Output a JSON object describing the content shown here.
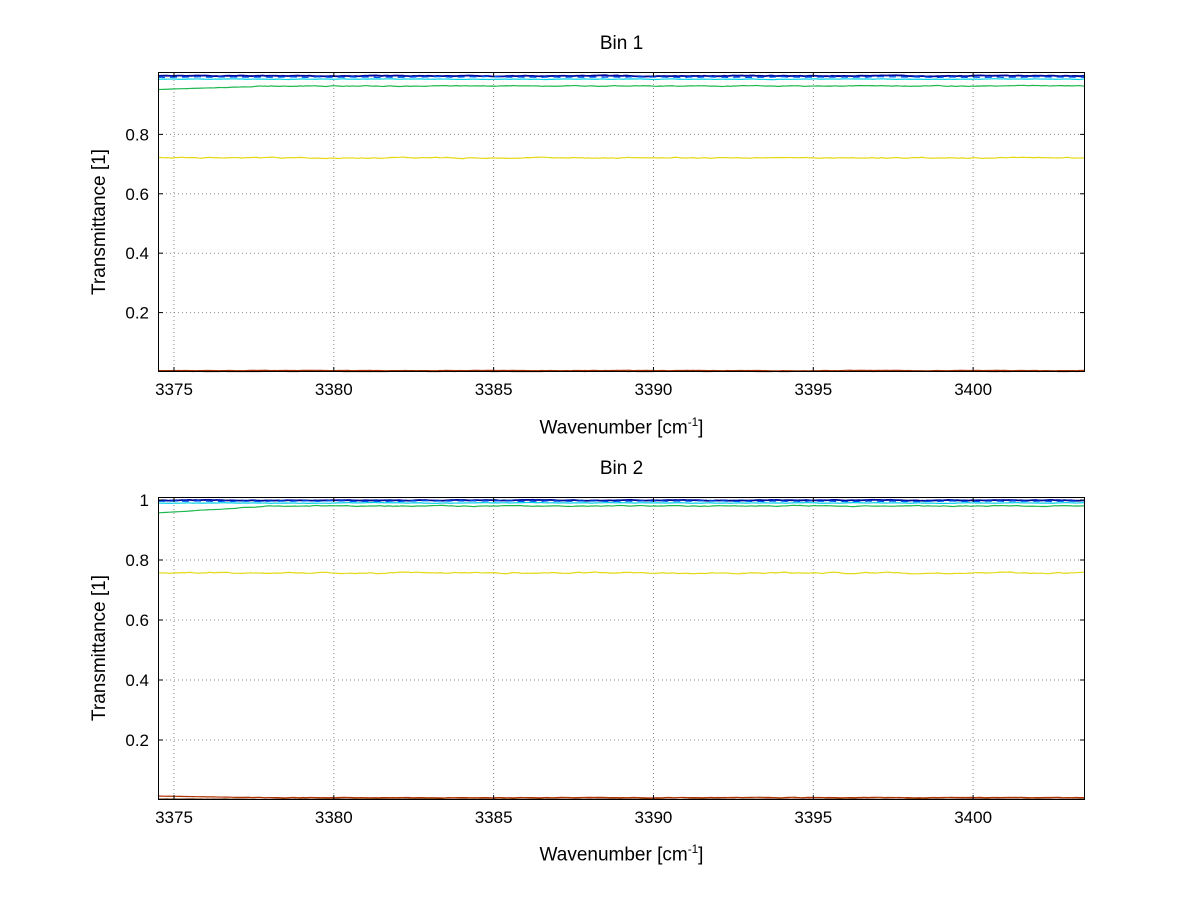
{
  "figure": {
    "background": "#ffffff",
    "grid_color": "#8a8a8a",
    "axis_color": "#000000",
    "tick_font_px": 17
  },
  "chart_data": [
    {
      "type": "line",
      "title": "Bin 1",
      "xlabel": "Wavenumber [cm^-1]",
      "xlabel_parts": {
        "prefix": "Wavenumber [cm",
        "sup": "-1",
        "suffix": "]"
      },
      "ylabel": "Transmittance [1]",
      "xlim": [
        3374.5,
        3403.5
      ],
      "ylim": [
        0,
        1.01
      ],
      "xticks": [
        3375,
        3380,
        3385,
        3390,
        3395,
        3400
      ],
      "xtick_labels": [
        "3375",
        "3380",
        "3385",
        "3390",
        "3395",
        "3400"
      ],
      "yticks": [
        0.2,
        0.4,
        0.6,
        0.8
      ],
      "ytick_labels": [
        "0.2",
        "0.4",
        "0.6",
        "0.8"
      ],
      "grid": true,
      "grid_style": "dotted",
      "legend": "none",
      "series": [
        {
          "name": "line-dark-blue",
          "color": "#000a99",
          "value": 0.997,
          "noise": 0.0035,
          "width": 1.8
        },
        {
          "name": "line-blue",
          "color": "#0055ee",
          "value": 0.993,
          "noise": 0.003,
          "width": 1.2,
          "dash": "7 5"
        },
        {
          "name": "line-cyan",
          "color": "#00cfe8",
          "value": 0.986,
          "noise": 0.0025,
          "width": 1.2
        },
        {
          "name": "line-green",
          "color": "#1fb84f",
          "value": 0.963,
          "noise": 0.004,
          "width": 1.2,
          "start_value": 0.951
        },
        {
          "name": "line-yellow",
          "color": "#e3d915",
          "value": 0.721,
          "noise": 0.005,
          "width": 1.2
        },
        {
          "name": "line-red",
          "color": "#b03000",
          "value": 0.005,
          "noise": 0.0018,
          "width": 1.2
        },
        {
          "name": "line-dark-red",
          "color": "#5e2600",
          "value": 0.002,
          "noise": 0.001,
          "width": 1.2
        }
      ]
    },
    {
      "type": "line",
      "title": "Bin 2",
      "xlabel": "Wavenumber [cm^-1]",
      "xlabel_parts": {
        "prefix": "Wavenumber [cm",
        "sup": "-1",
        "suffix": "]"
      },
      "ylabel": "Transmittance [1]",
      "xlim": [
        3374.5,
        3403.5
      ],
      "ylim": [
        0,
        1.01
      ],
      "xticks": [
        3375,
        3380,
        3385,
        3390,
        3395,
        3400
      ],
      "xtick_labels": [
        "3375",
        "3380",
        "3385",
        "3390",
        "3395",
        "3400"
      ],
      "yticks": [
        0.2,
        0.4,
        0.6,
        0.8,
        1
      ],
      "ytick_labels": [
        "0.2",
        "0.4",
        "0.6",
        "0.8",
        "1"
      ],
      "grid": true,
      "grid_style": "dotted",
      "legend": "none",
      "series": [
        {
          "name": "line-dark-blue",
          "color": "#000a99",
          "value": 0.999,
          "noise": 0.003,
          "width": 1.8
        },
        {
          "name": "line-blue",
          "color": "#0055ee",
          "value": 0.996,
          "noise": 0.0028,
          "width": 1.2,
          "dash": "7 5"
        },
        {
          "name": "line-cyan",
          "color": "#00cfe8",
          "value": 0.99,
          "noise": 0.0025,
          "width": 1.2
        },
        {
          "name": "line-green",
          "color": "#1fb84f",
          "value": 0.98,
          "noise": 0.004,
          "width": 1.2,
          "start_value": 0.957
        },
        {
          "name": "line-yellow",
          "color": "#e3d915",
          "value": 0.757,
          "noise": 0.0055,
          "width": 1.2
        },
        {
          "name": "line-red",
          "color": "#b03000",
          "value": 0.008,
          "noise": 0.002,
          "width": 1.2,
          "start_value": 0.013
        },
        {
          "name": "line-dark-red",
          "color": "#5e2600",
          "value": 0.003,
          "noise": 0.0012,
          "width": 1.2
        }
      ]
    }
  ]
}
